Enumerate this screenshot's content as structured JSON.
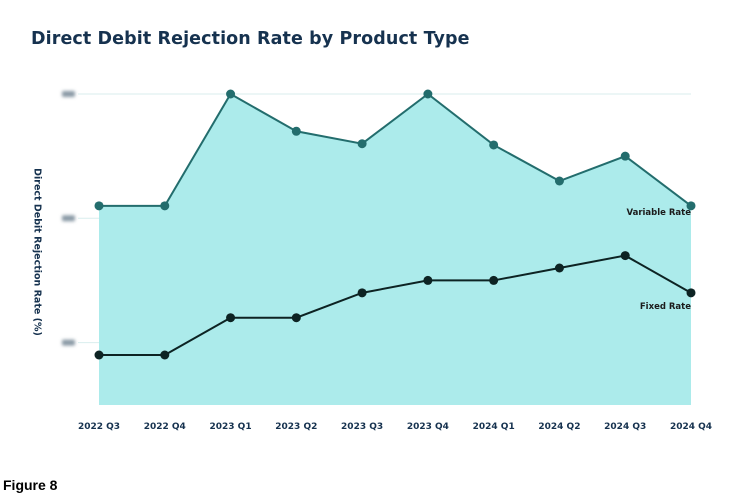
{
  "title": "Direct Debit Rejection Rate by Product Type",
  "figure_label": "Figure 8",
  "colors": {
    "area_fill": "#acebeb",
    "variable_line": "#236d6d",
    "fixed_line": "#0d2323",
    "gridline": "#d9eeee",
    "blurred_tick": "#8a9aa6"
  },
  "chart_data": {
    "type": "line",
    "title": "Direct Debit Rejection Rate by Product Type",
    "ylabel": "Direct Debit  Rejection Rate (%)",
    "xlabel": "",
    "categories": [
      "2022 Q3",
      "2022 Q4",
      "2023 Q1",
      "2023 Q2",
      "2023 Q3",
      "2023 Q4",
      "2024 Q1",
      "2024 Q2",
      "2024 Q3",
      "2024 Q4"
    ],
    "ytick_labels_obscured": true,
    "series": [
      {
        "name": "Variable Rate",
        "values": [
          3.1,
          3.1,
          4.0,
          3.7,
          3.6,
          4.0,
          3.59,
          3.3,
          3.5,
          3.1
        ],
        "area_fill": true
      },
      {
        "name": "Fixed Rate",
        "values": [
          1.9,
          1.9,
          2.2,
          2.2,
          2.4,
          2.5,
          2.5,
          2.6,
          2.7,
          2.4
        ],
        "area_fill": false
      }
    ],
    "y_gridlines": [
      2,
      3,
      4
    ],
    "ylim": [
      1.5,
      4.1
    ],
    "grid": true,
    "legend": "direct labels at right end of each line"
  }
}
